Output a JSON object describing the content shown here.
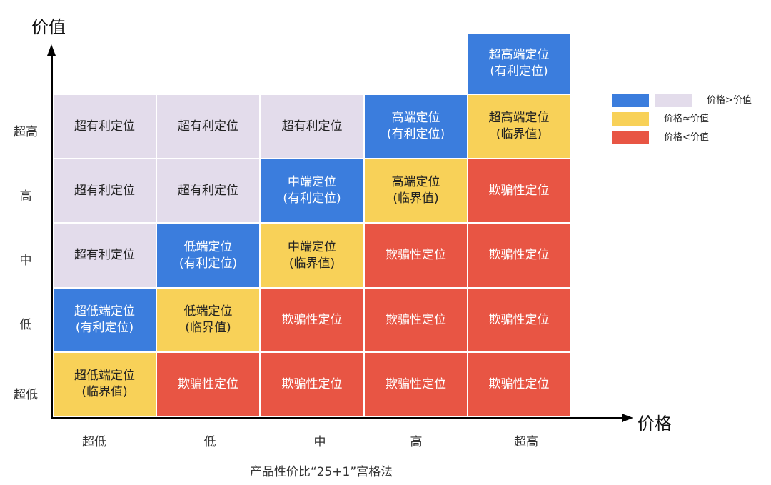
{
  "colors": {
    "blue": "#3b7ddd",
    "lilac": "#e3dceb",
    "yellow": "#f8d158",
    "red": "#e85544",
    "text_light": "#ffffff",
    "text_dark": "#222222"
  },
  "axes": {
    "y_title": "价值",
    "x_title": "价格",
    "y_ticks": [
      "超高",
      "高",
      "中",
      "低",
      "超低"
    ],
    "x_ticks": [
      "超低",
      "低",
      "中",
      "高",
      "超高"
    ]
  },
  "grid": {
    "rows": [
      [
        {
          "lines": [
            "超有利定位"
          ],
          "tone": "lilac"
        },
        {
          "lines": [
            "超有利定位"
          ],
          "tone": "lilac"
        },
        {
          "lines": [
            "超有利定位"
          ],
          "tone": "lilac"
        },
        {
          "lines": [
            "高端定位",
            "(有利定位)"
          ],
          "tone": "blue"
        },
        {
          "lines": [
            "超高端定位",
            "(临界值)"
          ],
          "tone": "yellow"
        }
      ],
      [
        {
          "lines": [
            "超有利定位"
          ],
          "tone": "lilac"
        },
        {
          "lines": [
            "超有利定位"
          ],
          "tone": "lilac"
        },
        {
          "lines": [
            "中端定位",
            "(有利定位)"
          ],
          "tone": "blue"
        },
        {
          "lines": [
            "高端定位",
            "(临界值)"
          ],
          "tone": "yellow"
        },
        {
          "lines": [
            "欺骗性定位"
          ],
          "tone": "red"
        }
      ],
      [
        {
          "lines": [
            "超有利定位"
          ],
          "tone": "lilac"
        },
        {
          "lines": [
            "低端定位",
            "(有利定位)"
          ],
          "tone": "blue"
        },
        {
          "lines": [
            "中端定位",
            "(临界值)"
          ],
          "tone": "yellow"
        },
        {
          "lines": [
            "欺骗性定位"
          ],
          "tone": "red"
        },
        {
          "lines": [
            "欺骗性定位"
          ],
          "tone": "red"
        }
      ],
      [
        {
          "lines": [
            "超低端定位",
            "(有利定位)"
          ],
          "tone": "blue"
        },
        {
          "lines": [
            "低端定位",
            "(临界值)"
          ],
          "tone": "yellow"
        },
        {
          "lines": [
            "欺骗性定位"
          ],
          "tone": "red"
        },
        {
          "lines": [
            "欺骗性定位"
          ],
          "tone": "red"
        },
        {
          "lines": [
            "欺骗性定位"
          ],
          "tone": "red"
        }
      ],
      [
        {
          "lines": [
            "超低端定位",
            "(临界值)"
          ],
          "tone": "yellow"
        },
        {
          "lines": [
            "欺骗性定位"
          ],
          "tone": "red"
        },
        {
          "lines": [
            "欺骗性定位"
          ],
          "tone": "red"
        },
        {
          "lines": [
            "欺骗性定位"
          ],
          "tone": "red"
        },
        {
          "lines": [
            "欺骗性定位"
          ],
          "tone": "red"
        }
      ]
    ],
    "extra_cell": {
      "lines": [
        "超高端定位",
        "(有利定位)"
      ],
      "tone": "blue"
    }
  },
  "legend": [
    {
      "tones": [
        "blue",
        "lilac"
      ],
      "label": "价格>价值"
    },
    {
      "tones": [
        "yellow"
      ],
      "label": "价格≈价值"
    },
    {
      "tones": [
        "red"
      ],
      "label": "价格<价值"
    }
  ],
  "caption": "产品性价比“25+1”宫格法"
}
